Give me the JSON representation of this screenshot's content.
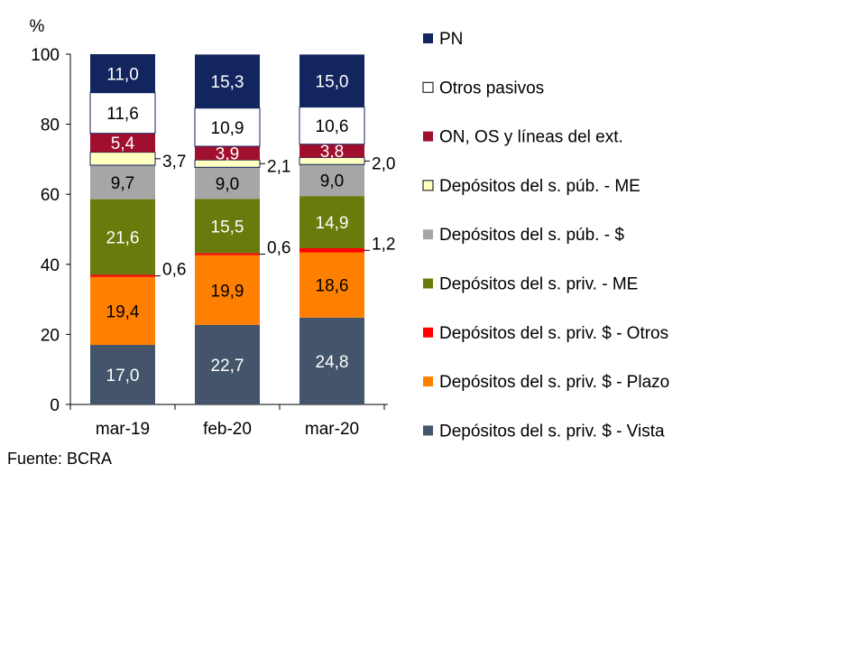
{
  "chart_data": {
    "type": "bar",
    "stacked": true,
    "ylabel": "%",
    "ylim": [
      0,
      100
    ],
    "yticks": [
      0,
      20,
      40,
      60,
      80,
      100
    ],
    "categories": [
      "mar-19",
      "feb-20",
      "mar-20"
    ],
    "legend_position": "right",
    "series": [
      {
        "name": "Depósitos del s. priv. $ - Vista",
        "color": "#44546A",
        "values": [
          17.0,
          22.7,
          24.8
        ],
        "labels": [
          "17,0",
          "22,7",
          "24,8"
        ]
      },
      {
        "name": "Depósitos del s. priv. $ - Plazo",
        "color": "#FF8000",
        "values": [
          19.4,
          19.9,
          18.6
        ],
        "labels": [
          "19,4",
          "19,9",
          "18,6"
        ]
      },
      {
        "name": "Depósitos del s. priv. $ - Otros",
        "color": "#FF0000",
        "values": [
          0.6,
          0.6,
          1.2
        ],
        "labels": [
          "0,6",
          "0,6",
          "1,2"
        ]
      },
      {
        "name": "Depósitos del s. priv. - ME",
        "color": "#6B7A0C",
        "values": [
          21.6,
          15.5,
          14.9
        ],
        "labels": [
          "21,6",
          "15,5",
          "14,9"
        ]
      },
      {
        "name": "Depósitos del s. púb. - $",
        "color": "#A6A6A6",
        "values": [
          9.7,
          9.0,
          9.0
        ],
        "labels": [
          "9,7",
          "9,0",
          "9,0"
        ]
      },
      {
        "name": "Depósitos del s. púb. - ME",
        "color": "#FFFFC0",
        "values": [
          3.7,
          2.1,
          2.0
        ],
        "labels": [
          "3,7",
          "2,1",
          "2,0"
        ]
      },
      {
        "name": "ON, OS y líneas del ext.",
        "color": "#A0102E",
        "values": [
          5.4,
          3.9,
          3.8
        ],
        "labels": [
          "5,4",
          "3,9",
          "3,8"
        ]
      },
      {
        "name": "Otros pasivos",
        "color": "#FFFFFF",
        "values": [
          11.6,
          10.9,
          10.6
        ],
        "labels": [
          "11,6",
          "10,9",
          "10,6"
        ]
      },
      {
        "name": "PN",
        "color": "#13255E",
        "values": [
          11.0,
          15.3,
          15.0
        ],
        "labels": [
          "11,0",
          "15,3",
          "15,0"
        ]
      }
    ]
  },
  "source": "Fuente: BCRA"
}
